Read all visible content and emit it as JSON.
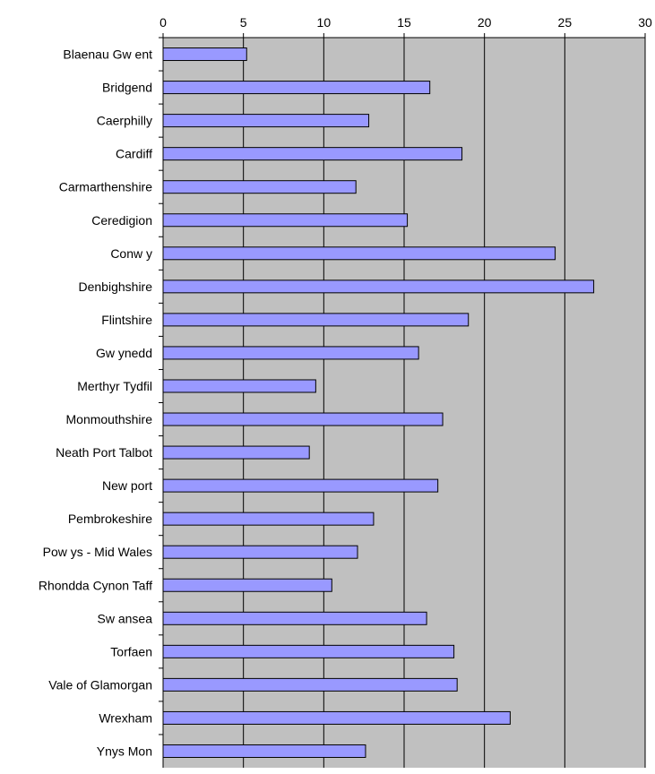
{
  "chart_data": {
    "type": "bar",
    "orientation": "horizontal",
    "categories": [
      "Blaenau Gw ent",
      "Bridgend",
      "Caerphilly",
      "Cardiff",
      "Carmarthenshire",
      "Ceredigion",
      "Conw y",
      "Denbighshire",
      "Flintshire",
      "Gw ynedd",
      "Merthyr Tydfil",
      "Monmouthshire",
      "Neath Port Talbot",
      "New port",
      "Pembrokeshire",
      "Pow ys - Mid Wales",
      "Rhondda Cynon Taff",
      "Sw ansea",
      "Torfaen",
      "Vale of Glamorgan",
      "Wrexham",
      "Ynys Mon"
    ],
    "values": [
      5.2,
      16.6,
      12.8,
      18.6,
      12.0,
      15.2,
      24.4,
      26.8,
      19.0,
      15.9,
      9.5,
      17.4,
      9.1,
      17.1,
      13.1,
      12.1,
      10.5,
      16.4,
      18.1,
      18.3,
      21.6,
      12.6
    ],
    "xlim": [
      0,
      30
    ],
    "xticks": [
      0,
      5,
      10,
      15,
      20,
      25,
      30
    ],
    "title": "",
    "xlabel": "",
    "ylabel": "",
    "grid": true,
    "legend": "none",
    "x_axis_position": "top",
    "colors": {
      "plot_background": "#c0c0c0",
      "bar_fill": "#9999ff",
      "bar_stroke": "#000000",
      "gridline": "#000000",
      "text": "#000000"
    }
  }
}
